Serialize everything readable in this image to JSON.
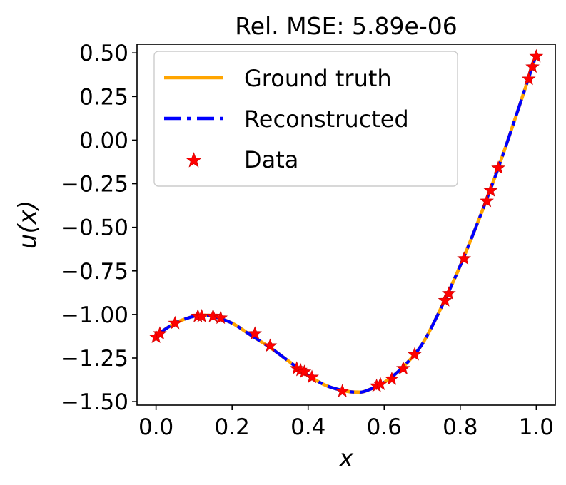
{
  "chart_data": {
    "type": "line",
    "title": "Rel. MSE: 5.89e-06",
    "xlabel": "x",
    "ylabel": "u(x)",
    "xlim": [
      -0.05,
      1.05
    ],
    "ylim": [
      -1.52,
      0.55
    ],
    "xticks": [
      0.0,
      0.2,
      0.4,
      0.6,
      0.8,
      1.0
    ],
    "xtick_labels": [
      "0.0",
      "0.2",
      "0.4",
      "0.6",
      "0.8",
      "1.0"
    ],
    "yticks": [
      0.5,
      0.25,
      0.0,
      -0.25,
      -0.5,
      -0.75,
      -1.0,
      -1.25,
      -1.5
    ],
    "ytick_labels": [
      "0.50",
      "0.25",
      "0.00",
      "−0.25",
      "−0.50",
      "−0.75",
      "−1.00",
      "−1.25",
      "−1.50"
    ],
    "legend_position": "top-left",
    "series": [
      {
        "name": "Ground truth",
        "kind": "line",
        "color": "#ffa500",
        "style": "solid",
        "x": [
          0.0,
          0.05,
          0.1,
          0.13,
          0.15,
          0.2,
          0.25,
          0.3,
          0.35,
          0.4,
          0.45,
          0.5,
          0.53,
          0.55,
          0.6,
          0.65,
          0.7,
          0.75,
          0.8,
          0.85,
          0.9,
          0.95,
          1.0
        ],
        "y": [
          -1.12,
          -1.05,
          -1.01,
          -1.005,
          -1.01,
          -1.05,
          -1.12,
          -1.19,
          -1.27,
          -1.35,
          -1.41,
          -1.44,
          -1.445,
          -1.44,
          -1.39,
          -1.3,
          -1.17,
          -0.96,
          -0.72,
          -0.45,
          -0.16,
          0.16,
          0.49
        ]
      },
      {
        "name": "Reconstructed",
        "kind": "line",
        "color": "#0000ff",
        "style": "dashdot",
        "x": [
          0.0,
          0.05,
          0.1,
          0.13,
          0.15,
          0.2,
          0.25,
          0.3,
          0.35,
          0.4,
          0.45,
          0.5,
          0.53,
          0.55,
          0.6,
          0.65,
          0.7,
          0.75,
          0.8,
          0.85,
          0.9,
          0.95,
          1.0
        ],
        "y": [
          -1.12,
          -1.05,
          -1.01,
          -1.005,
          -1.01,
          -1.05,
          -1.12,
          -1.19,
          -1.27,
          -1.35,
          -1.41,
          -1.44,
          -1.445,
          -1.44,
          -1.39,
          -1.3,
          -1.17,
          -0.96,
          -0.72,
          -0.45,
          -0.16,
          0.16,
          0.49
        ]
      },
      {
        "name": "Data",
        "kind": "scatter",
        "marker": "star",
        "color": "#ff0000",
        "x": [
          0.0,
          0.01,
          0.05,
          0.11,
          0.12,
          0.15,
          0.17,
          0.26,
          0.3,
          0.37,
          0.38,
          0.39,
          0.41,
          0.49,
          0.58,
          0.59,
          0.62,
          0.65,
          0.68,
          0.76,
          0.77,
          0.81,
          0.87,
          0.88,
          0.9,
          0.98,
          0.99,
          1.0
        ],
        "y": [
          -1.13,
          -1.11,
          -1.05,
          -1.01,
          -1.01,
          -1.01,
          -1.02,
          -1.11,
          -1.18,
          -1.31,
          -1.32,
          -1.33,
          -1.36,
          -1.44,
          -1.41,
          -1.4,
          -1.37,
          -1.31,
          -1.23,
          -0.92,
          -0.88,
          -0.68,
          -0.35,
          -0.29,
          -0.16,
          0.35,
          0.42,
          0.48
        ]
      }
    ]
  }
}
